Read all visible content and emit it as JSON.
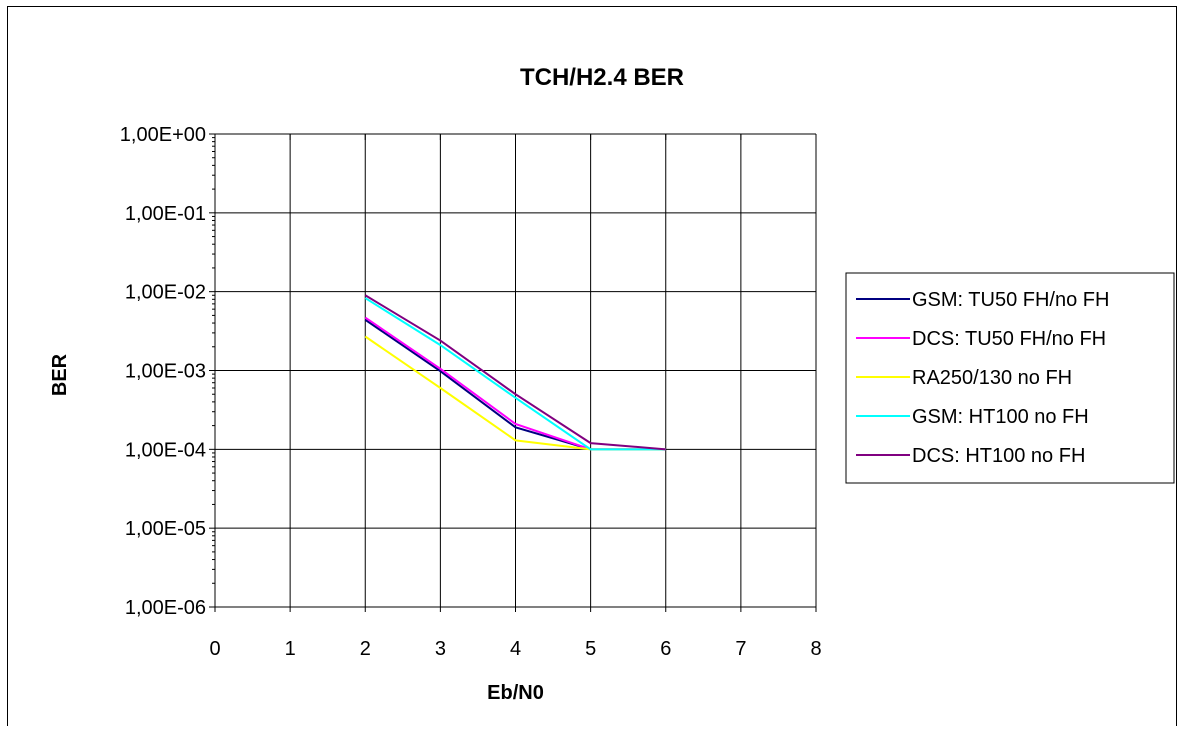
{
  "chart_data": {
    "type": "line",
    "title": "TCH/H2.4   BER",
    "xlabel": "Eb/N0",
    "ylabel": "BER",
    "xlim": [
      0,
      8
    ],
    "ylim": [
      1e-06,
      1
    ],
    "yscale": "log",
    "grid": true,
    "legend_position": "right",
    "x_ticks": [
      "0",
      "1",
      "2",
      "3",
      "4",
      "5",
      "6",
      "7",
      "8"
    ],
    "y_ticks": [
      "1,00E+00",
      "1,00E-01",
      "1,00E-02",
      "1,00E-03",
      "1,00E-04",
      "1,00E-05",
      "1,00E-06"
    ],
    "series": [
      {
        "name": "GSM: TU50 FH/no FH",
        "color": "#000080",
        "x": [
          2,
          3,
          4,
          5,
          6
        ],
        "y": [
          0.0044,
          0.00098,
          0.00019,
          0.0001,
          0.0001
        ]
      },
      {
        "name": "DCS: TU50 FH/no FH",
        "color": "#ff00ff",
        "x": [
          2,
          3,
          4,
          5,
          6
        ],
        "y": [
          0.0047,
          0.00105,
          0.00021,
          0.0001,
          0.0001
        ]
      },
      {
        "name": "RA250/130 no FH",
        "color": "#ffff00",
        "x": [
          2,
          3,
          4,
          5,
          6
        ],
        "y": [
          0.0027,
          0.0006,
          0.00013,
          0.0001,
          0.0001
        ]
      },
      {
        "name": "GSM: HT100 no FH",
        "color": "#00ffff",
        "x": [
          2,
          3,
          4,
          5,
          6
        ],
        "y": [
          0.0083,
          0.0021,
          0.00045,
          0.0001,
          0.0001
        ]
      },
      {
        "name": "DCS: HT100 no FH",
        "color": "#800080",
        "x": [
          2,
          3,
          4,
          5,
          6
        ],
        "y": [
          0.009,
          0.0024,
          0.0005,
          0.00012,
          0.0001
        ]
      }
    ]
  }
}
